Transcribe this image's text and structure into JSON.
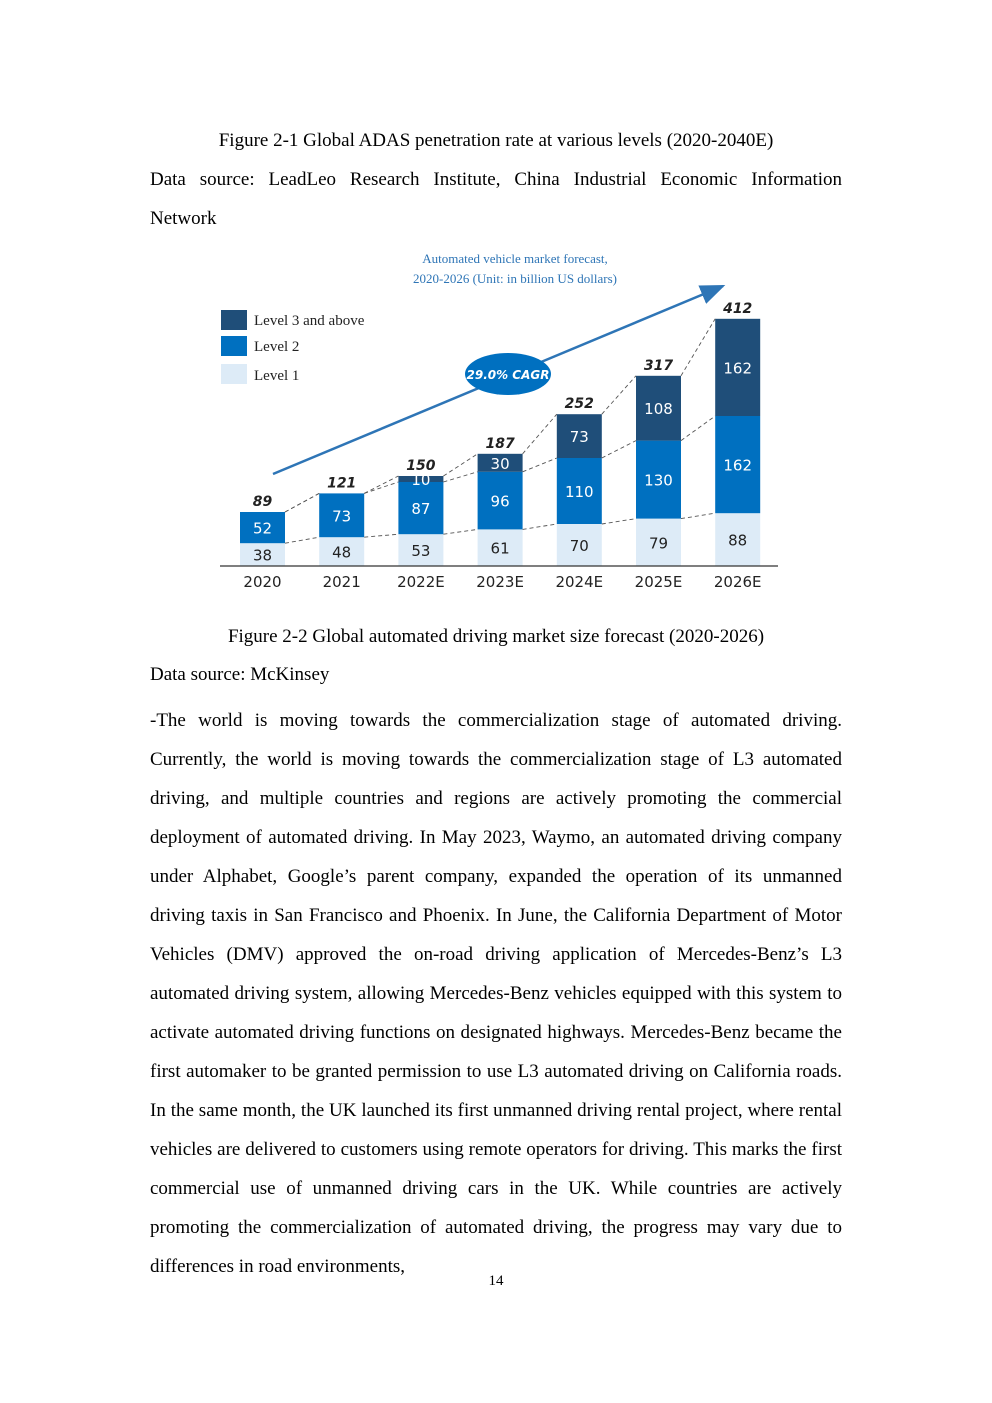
{
  "figure1": {
    "caption": "Figure 2-1 Global ADAS penetration rate at various levels (2020-2040E)",
    "source_line1": "Data source: LeadLeo Research Institute, China Industrial Economic Information",
    "source_line2": "Network"
  },
  "figure2": {
    "caption": "Figure 2-2 Global automated driving market size forecast (2020-2026)",
    "source": "Data source: McKinsey"
  },
  "colors": {
    "level3": "#1f4e79",
    "level2": "#0070c0",
    "level1": "#ddebf7",
    "title": "#2e75b6",
    "arrow": "#2e75b6",
    "cagr_badge": "#0070c0"
  },
  "chart_data": {
    "type": "bar",
    "stacked": true,
    "title_line1": "Automated vehicle market forecast,",
    "title_line2": "2020-2026 (Unit: in billion US dollars)",
    "categories": [
      "2020",
      "2021",
      "2022E",
      "2023E",
      "2024E",
      "2025E",
      "2026E"
    ],
    "series": [
      {
        "name": "Level 1",
        "values": [
          38,
          48,
          53,
          61,
          70,
          79,
          88
        ]
      },
      {
        "name": "Level 2",
        "values": [
          52,
          73,
          87,
          96,
          110,
          130,
          162
        ]
      },
      {
        "name": "Level 3 and above",
        "values": [
          null,
          null,
          10,
          30,
          73,
          108,
          162
        ]
      }
    ],
    "totals": [
      89,
      121,
      150,
      187,
      252,
      317,
      412
    ],
    "annotation": "29.0% CAGR",
    "legend_position": "top-left",
    "grid": false
  },
  "body": {
    "paragraph": "-The world is moving towards the commercialization stage of automated driving. Currently, the world is moving towards the commercialization stage of L3 automated driving, and multiple countries and regions are actively promoting the commercial deployment of automated driving. In May 2023, Waymo, an automated driving company under Alphabet, Google’s parent company, expanded the operation of its unmanned driving taxis in San Francisco and Phoenix. In June, the California Department of Motor Vehicles (DMV) approved the on-road driving application of Mercedes-Benz’s L3 automated driving system, allowing Mercedes-Benz vehicles equipped with this system to activate automated driving functions on designated highways. Mercedes-Benz became the first automaker to be granted permission to use L3 automated driving on California roads. In the same month, the UK launched its first unmanned driving rental project, where rental vehicles are delivered to customers using remote operators for driving. This marks the first commercial use of unmanned driving cars in the UK. While countries are actively promoting the commercialization of automated driving, the progress may vary due to differences in road environments,"
  },
  "page_number": "14"
}
